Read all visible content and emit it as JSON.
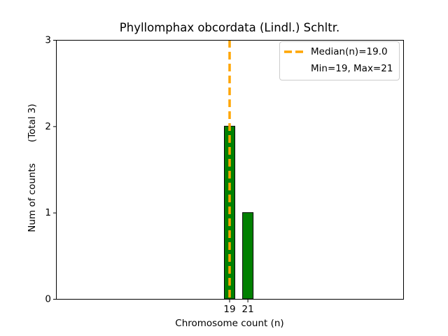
{
  "chart_data": {
    "type": "bar",
    "title": "Phyllomphax obcordata (Lindl.) Schltr.",
    "xlabel": "Chromosome count (n)",
    "ylabel": "Num of counts       (Total 3)",
    "categories": [
      19,
      21
    ],
    "values": [
      2,
      1
    ],
    "xticks": [
      19,
      21
    ],
    "yticks": [
      0,
      1,
      2,
      3
    ],
    "xlim": [
      0,
      38
    ],
    "ylim": [
      0,
      3
    ],
    "bar_width_units": 1.15,
    "bar_color": "#008000",
    "bar_edge_color": "#000000",
    "grid": "off",
    "median_line": {
      "x": 19.0,
      "color": "#FFA500",
      "style": "dashed"
    },
    "legend": {
      "position": "upper right",
      "entries": [
        {
          "marker": "orange-dashed-line",
          "label": "Median(n)=19.0"
        },
        {
          "marker": "none",
          "label": "Min=19, Max=21"
        }
      ]
    },
    "stats": {
      "median": 19.0,
      "min": 19,
      "max": 21,
      "total": 3
    }
  }
}
